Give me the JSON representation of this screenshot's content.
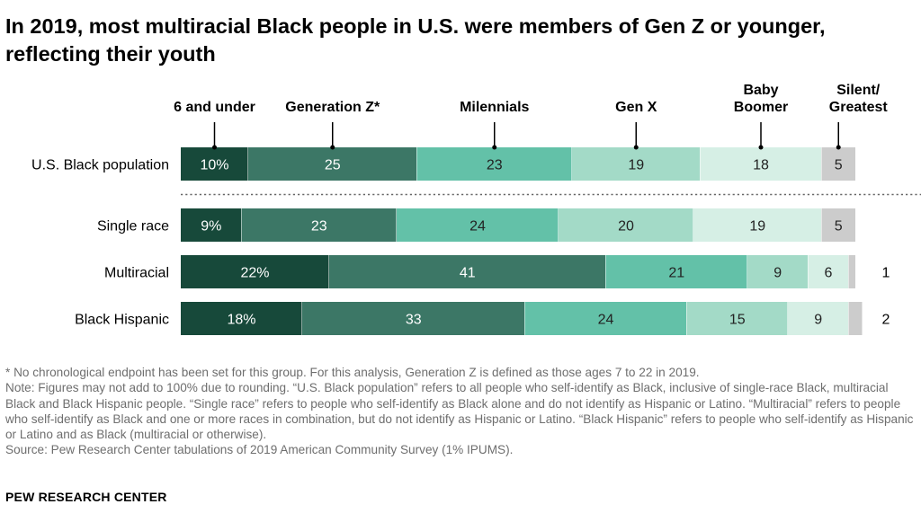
{
  "title": "In 2019, most multiracial Black people in U.S. were members of Gen Z or younger, reflecting their youth",
  "colors": {
    "segments": [
      "#17493a",
      "#3c7766",
      "#63c1a8",
      "#a3dac7",
      "#d6efe5",
      "#cccccc"
    ],
    "text_on_dark": "#ffffff",
    "text_on_light": "#222222",
    "notes": "#6e6e6e"
  },
  "chart_data": {
    "type": "bar",
    "orientation": "horizontal",
    "stacked": true,
    "unit": "%",
    "legend_placement": "top",
    "grid": false,
    "categories": [
      "U.S. Black population",
      "Single race",
      "Multiracial",
      "Black Hispanic"
    ],
    "series": [
      {
        "name": "6 and under",
        "values": [
          10,
          9,
          22,
          18
        ],
        "labels": [
          "10%",
          "9%",
          "22%",
          "18%"
        ]
      },
      {
        "name": "Generation Z*",
        "values": [
          25,
          23,
          41,
          33
        ],
        "labels": [
          "25",
          "23",
          "41",
          "33"
        ]
      },
      {
        "name": "Milennials",
        "values": [
          23,
          24,
          21,
          24
        ],
        "labels": [
          "23",
          "24",
          "21",
          "24"
        ]
      },
      {
        "name": "Gen X",
        "values": [
          19,
          20,
          9,
          15
        ],
        "labels": [
          "19",
          "20",
          "9",
          "15"
        ]
      },
      {
        "name": "Baby Boomer",
        "values": [
          18,
          19,
          6,
          9
        ],
        "labels": [
          "18",
          "19",
          "6",
          "9"
        ]
      },
      {
        "name": "Silent/ Greatest",
        "values": [
          5,
          5,
          1,
          2
        ],
        "labels": [
          "5",
          "5",
          "1",
          "2"
        ]
      }
    ],
    "legend_lines": [
      [
        "6 and under"
      ],
      [
        "Generation Z*"
      ],
      [
        "Milennials"
      ],
      [
        "Gen X"
      ],
      [
        "Baby",
        "Boomer"
      ],
      [
        "Silent/",
        "Greatest"
      ]
    ]
  },
  "notes": {
    "footnote": "* No chronological endpoint has been set for this group. For this analysis, Generation Z is defined as those ages 7 to 22 in 2019.",
    "note": "Note: Figures may not add to 100% due to rounding. “U.S. Black population” refers to all people who self-identify as Black, inclusive of single-race Black, multiracial Black and Black Hispanic people. “Single race” refers to people who self-identify as Black alone and do not identify as Hispanic or Latino. “Multiracial” refers to people who self-identify as Black and one or more races in combination, but do not identify as Hispanic or Latino. “Black Hispanic” refers to people who self-identify as Hispanic or Latino and as Black (multiracial or otherwise).",
    "source": "Source: Pew Research Center tabulations of 2019 American Community Survey (1% IPUMS)."
  },
  "brand": "PEW RESEARCH CENTER"
}
